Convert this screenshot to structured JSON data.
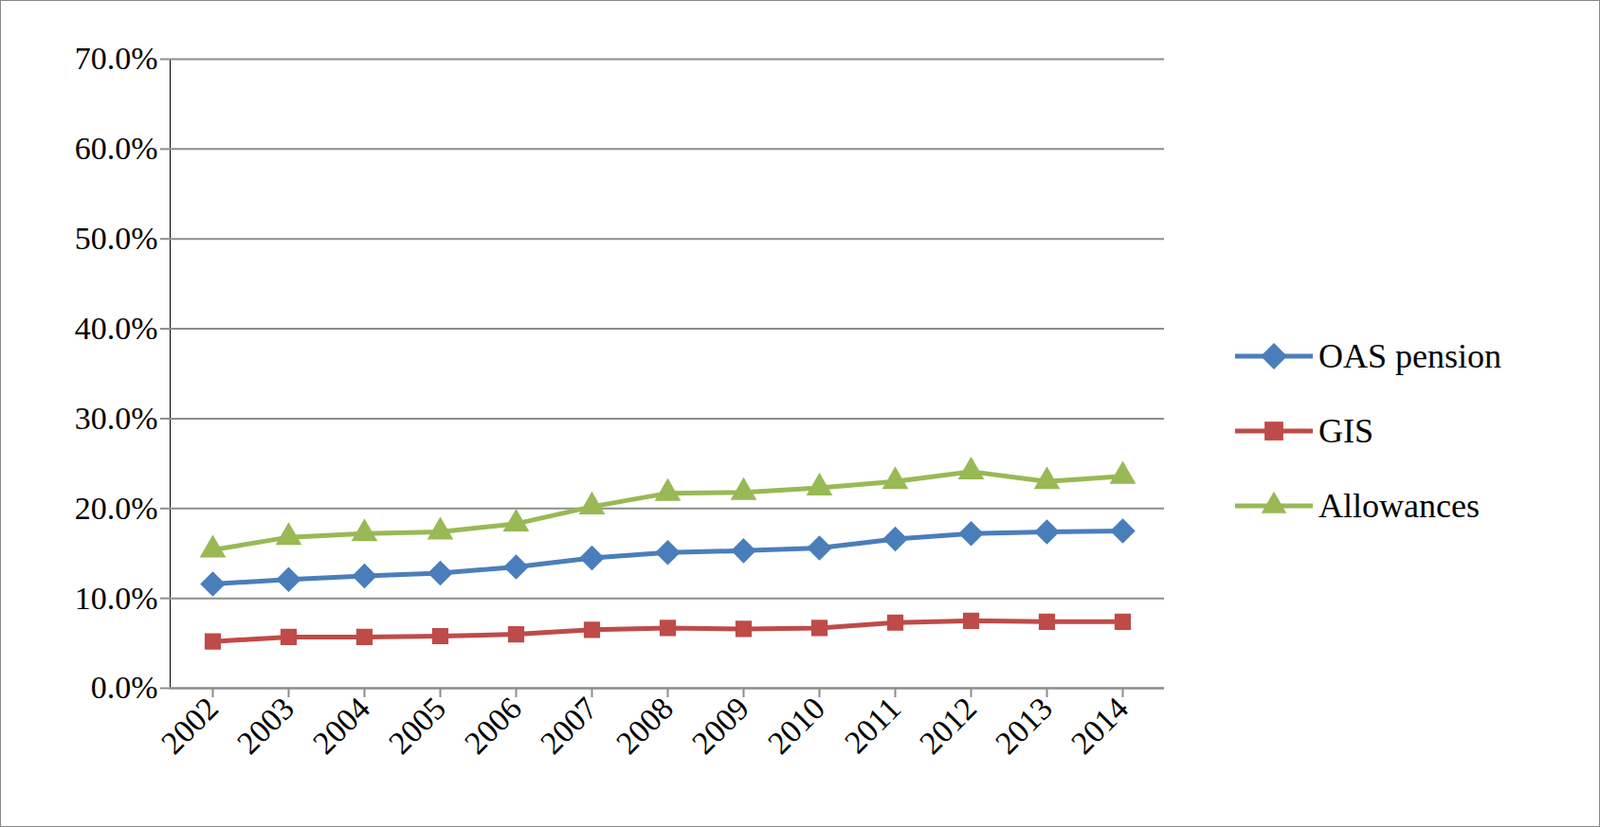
{
  "chart_data": {
    "type": "line",
    "categories": [
      "2002",
      "2003",
      "2004",
      "2005",
      "2006",
      "2007",
      "2008",
      "2009",
      "2010",
      "2011",
      "2012",
      "2013",
      "2014"
    ],
    "series": [
      {
        "name": "OAS pension",
        "color": "#4a7ebb",
        "marker": "diamond",
        "values": [
          11.6,
          12.1,
          12.5,
          12.8,
          13.5,
          14.5,
          15.1,
          15.3,
          15.6,
          16.6,
          17.2,
          17.4,
          17.5
        ]
      },
      {
        "name": "GIS",
        "color": "#be4b48",
        "marker": "square",
        "values": [
          5.2,
          5.7,
          5.7,
          5.8,
          6.0,
          6.5,
          6.7,
          6.6,
          6.7,
          7.3,
          7.5,
          7.4,
          7.4
        ]
      },
      {
        "name": "Allowances",
        "color": "#98b954",
        "marker": "triangle",
        "values": [
          15.4,
          16.8,
          17.2,
          17.4,
          18.3,
          20.2,
          21.7,
          21.8,
          22.3,
          23.0,
          24.1,
          23.0,
          23.6
        ]
      }
    ],
    "ylim": [
      0,
      70
    ],
    "yticks": [
      {
        "value": 0,
        "label": "0.0%"
      },
      {
        "value": 10,
        "label": "10.0%"
      },
      {
        "value": 20,
        "label": "20.0%"
      },
      {
        "value": 30,
        "label": "30.0%"
      },
      {
        "value": 40,
        "label": "40.0%"
      },
      {
        "value": 50,
        "label": "50.0%"
      },
      {
        "value": 60,
        "label": "60.0%"
      },
      {
        "value": 70,
        "label": "70.0%"
      }
    ],
    "grid": true,
    "legend": "right"
  }
}
